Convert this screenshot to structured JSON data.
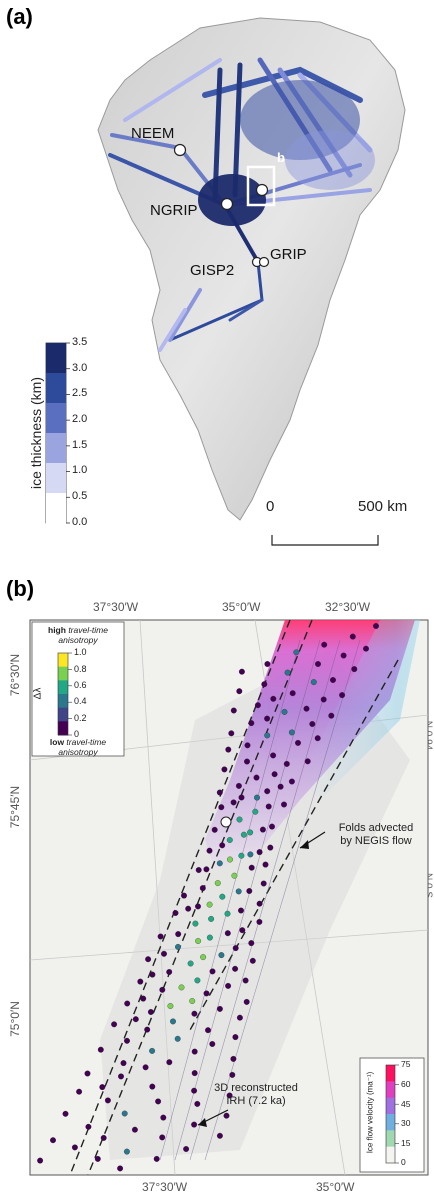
{
  "panel_a": {
    "label": "(a)",
    "sites": {
      "neem": "NEEM",
      "ngrip": "NGRIP",
      "grip": "GRIP",
      "gisp2": "GISP2",
      "box": "b"
    },
    "colorbar": {
      "label": "ice thickness (km)",
      "ticks": [
        "3.5",
        "3.0",
        "2.5",
        "2.0",
        "1.5",
        "1.0",
        "0.5",
        "0.0"
      ],
      "colors": [
        "#1b2a6b",
        "#2e4a9a",
        "#5a6fc0",
        "#9aa5e0",
        "#d6d9f4",
        "#ffffff"
      ]
    },
    "scalebar": {
      "start": "0",
      "end": "500 km"
    }
  },
  "panel_b": {
    "label": "(b)",
    "top_lon": [
      "37°30′W",
      "35°0′W",
      "32°30′W"
    ],
    "bottom_lon": [
      "37°30′W",
      "35°0′W"
    ],
    "left_lat": [
      "76°30′N",
      "75°45′N",
      "75°0′N"
    ],
    "right_lat": [
      "N,0,94",
      "N,0,S"
    ],
    "anis_colorbar": {
      "title_high_bold": "high",
      "title_high_rest": " travel-time anisotropy",
      "title_low_bold": "low",
      "title_low_rest": " travel-time anisotropy",
      "label": "Δλ",
      "ticks": [
        "1.0",
        "0.8",
        "0.6",
        "0.4",
        "0.2",
        "0"
      ],
      "colors": [
        "#fde725",
        "#7ad151",
        "#22a884",
        "#2a788e",
        "#414487",
        "#440154"
      ]
    },
    "vel_colorbar": {
      "label": "Ice flow velocity (ma⁻¹)",
      "ticks": [
        "75",
        "60",
        "45",
        "30",
        "15",
        "0"
      ],
      "colors": [
        "#ff1060",
        "#e040c0",
        "#a070e0",
        "#70b0e0",
        "#a0d8b0",
        "#f4f4f0"
      ]
    },
    "annotations": {
      "folds_line1": "Folds advected",
      "folds_line2": "by NEGIS flow",
      "irh_line1": "3D reconstructed",
      "irh_line2": "IRH (7.2 ka)"
    }
  }
}
